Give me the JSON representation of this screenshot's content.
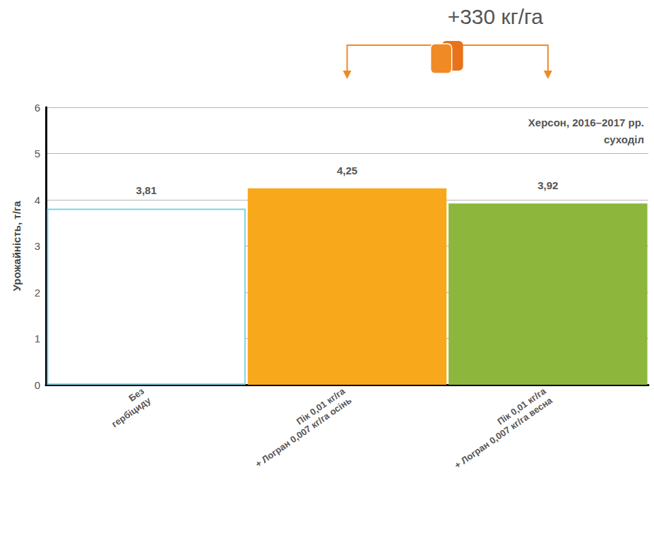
{
  "chart_data": {
    "type": "bar",
    "y_label": "Урожайність, т/га",
    "categories": [
      "Без гербіциду",
      "Пік 0,01 кг/га + Логран 0,007 кг/га осінь",
      "Пік 0,01 кг/га + Логран 0,007 кг/га весна"
    ],
    "values": [
      3.81,
      4.25,
      3.92
    ],
    "value_labels": [
      "3,81",
      "4,25",
      "3,92"
    ],
    "colors": [
      "#ffffff",
      "#f7a81b",
      "#8db63c"
    ],
    "ylim": [
      0,
      6
    ],
    "yticks": [
      0,
      1,
      2,
      3,
      4,
      5,
      6
    ],
    "grid": true,
    "data_labels": true,
    "annotations": [
      "+330 кг/га",
      "Херсон, 2016–2017 рр.",
      "суходіл"
    ]
  }
}
